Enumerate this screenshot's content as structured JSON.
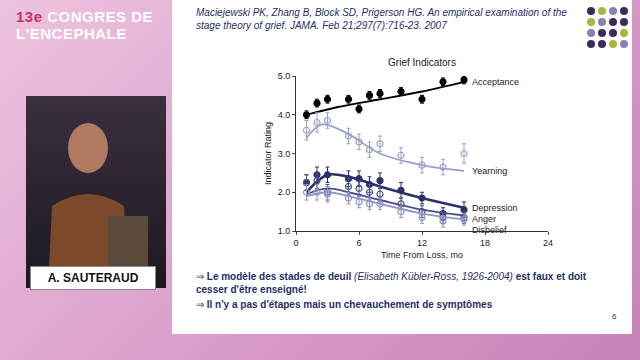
{
  "header": {
    "number": "13e",
    "lines": [
      "CONGRES DE",
      "L'ENCEPHALE"
    ]
  },
  "speaker": "A. SAUTERAUD",
  "slide": {
    "reference": "Maciejewski PK, Zhang B, Block SD, Prigerson HG. An empirical examination of the stage theory of grief. JAMA. Feb 21;297(7):716-23. 2007",
    "bullet": "⇒",
    "bullets": [
      [
        {
          "text": "Le modèle des stades de deuil ",
          "style": "bold"
        },
        {
          "text": "(Elisabeth Kübler-Ross, 1926-2004)",
          "style": "italic"
        },
        {
          "text": " est faux  et doit cesser d'être enseigné!",
          "style": "bold"
        }
      ],
      [
        {
          "text": "Il n'y a pas d'étapes mais un chevauchement de symptômes",
          "style": "bold"
        }
      ]
    ],
    "page": "6"
  },
  "chart_data": {
    "type": "scatter",
    "title": "Grief Indicators",
    "x_label": "Time From Loss, mo",
    "y_label": "Indicator Rating",
    "xlim": [
      0,
      24
    ],
    "xticks": [
      0,
      6,
      12,
      18,
      24
    ],
    "ylim": [
      1,
      5
    ],
    "yticks": [
      {
        "value": 1,
        "label": "1.0"
      },
      {
        "value": 2,
        "label": "2.0"
      },
      {
        "value": 3,
        "label": "3.0"
      },
      {
        "value": 4,
        "label": "4.0"
      },
      {
        "value": 5,
        "label": "5.0"
      }
    ],
    "grid": false,
    "series": [
      {
        "name": "Acceptance",
        "color": "#000000",
        "marker": "filled",
        "x": [
          1,
          2,
          3,
          5,
          6,
          7,
          8,
          10,
          12,
          14,
          16
        ],
        "values": [
          4.0,
          4.3,
          4.4,
          4.4,
          4.15,
          4.5,
          4.55,
          4.6,
          4.4,
          4.85,
          4.9
        ],
        "error": [
          0.1,
          0.1,
          0.1,
          0.1,
          0.1,
          0.1,
          0.1,
          0.1,
          0.1,
          0.1,
          0.1
        ],
        "trend_x": [
          1,
          4,
          8,
          12,
          16
        ],
        "trend_values": [
          4.0,
          4.2,
          4.4,
          4.6,
          4.85
        ]
      },
      {
        "name": "Yearning",
        "color": "#9aa0c8",
        "marker": "open",
        "x": [
          1,
          2,
          3,
          5,
          6,
          7,
          8,
          10,
          12,
          14,
          16
        ],
        "values": [
          3.6,
          3.8,
          3.85,
          3.45,
          3.3,
          3.1,
          3.25,
          2.95,
          2.7,
          2.65,
          3.0
        ],
        "error": [
          0.25,
          0.25,
          0.2,
          0.2,
          0.2,
          0.2,
          0.2,
          0.2,
          0.2,
          0.2,
          0.25
        ],
        "trend_x": [
          1,
          2.5,
          5,
          8,
          12,
          16
        ],
        "trend_values": [
          3.4,
          3.75,
          3.5,
          3.0,
          2.7,
          2.55
        ]
      },
      {
        "name": "Depression",
        "color": "#2b2f6b",
        "marker": "filled",
        "x": [
          1,
          2,
          3,
          5,
          6,
          7,
          8,
          10,
          12,
          14,
          16
        ],
        "values": [
          2.25,
          2.45,
          2.45,
          2.35,
          2.35,
          2.2,
          2.3,
          2.05,
          1.85,
          1.45,
          1.55
        ],
        "error": [
          0.2,
          0.2,
          0.2,
          0.2,
          0.2,
          0.2,
          0.2,
          0.2,
          0.15,
          0.15,
          0.2
        ],
        "trend_x": [
          1,
          3,
          5,
          8,
          12,
          16
        ],
        "trend_values": [
          2.0,
          2.45,
          2.4,
          2.15,
          1.85,
          1.6
        ]
      },
      {
        "name": "Anger",
        "color": "#4a4f8a",
        "marker": "open",
        "x": [
          1,
          2,
          3,
          5,
          6,
          7,
          8,
          10,
          12,
          14,
          16
        ],
        "values": [
          2.25,
          2.3,
          2.0,
          2.15,
          2.1,
          2.0,
          1.95,
          1.7,
          1.5,
          1.35,
          1.35
        ],
        "error": [
          0.2,
          0.2,
          0.2,
          0.2,
          0.2,
          0.2,
          0.2,
          0.15,
          0.15,
          0.15,
          0.15
        ],
        "trend_x": [
          1,
          3,
          5,
          8,
          12,
          16
        ],
        "trend_values": [
          1.95,
          2.1,
          2.0,
          1.8,
          1.55,
          1.4
        ]
      },
      {
        "name": "Disbelief",
        "color": "#8f94c4",
        "marker": "open",
        "x": [
          1,
          2,
          3,
          5,
          6,
          7,
          8,
          10,
          12,
          14,
          16
        ],
        "values": [
          2.0,
          2.0,
          1.95,
          1.85,
          1.75,
          1.7,
          1.7,
          1.5,
          1.35,
          1.25,
          1.3
        ],
        "error": [
          0.2,
          0.2,
          0.2,
          0.15,
          0.15,
          0.15,
          0.15,
          0.15,
          0.15,
          0.15,
          0.15
        ],
        "trend_x": [
          1,
          3,
          5,
          8,
          12,
          16
        ],
        "trend_values": [
          1.9,
          2.0,
          1.9,
          1.7,
          1.45,
          1.3
        ]
      }
    ]
  }
}
